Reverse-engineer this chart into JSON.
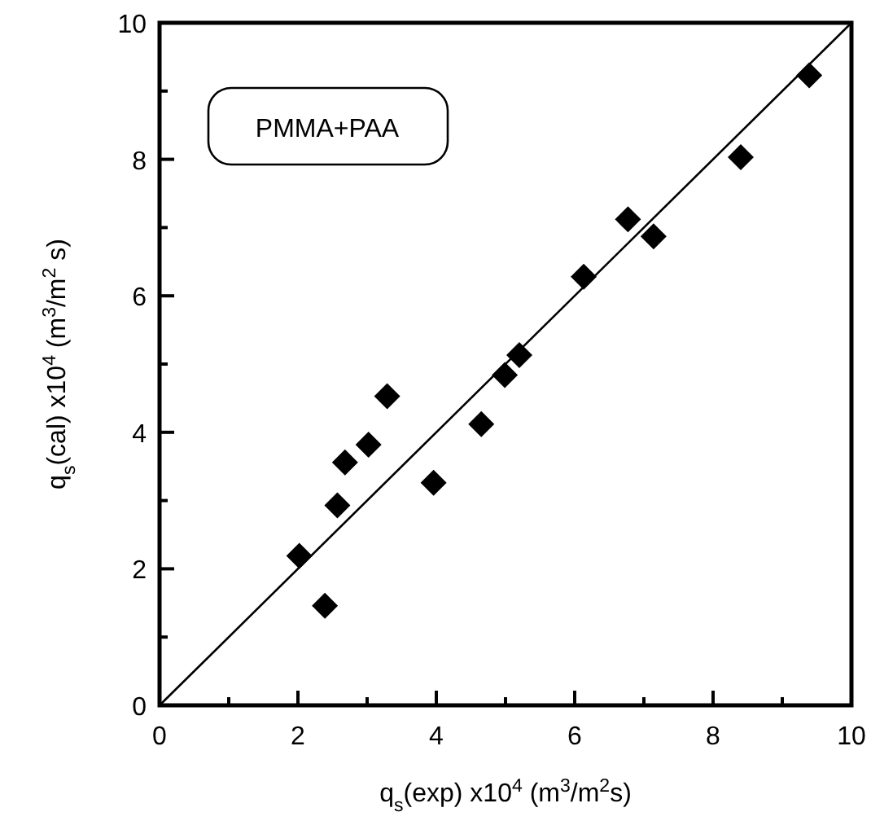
{
  "chart_data": {
    "type": "scatter",
    "xlabel": "q$_{s}$(exp) x10$^{4}$  (m$^{3}$/m$^{2}$s)",
    "ylabel": "q$_{s}$(cal)  x10$^{4}$  (m$^{3}$/m$^{2}$ s)",
    "annotations": [
      "PMMA+PAA"
    ],
    "xlim": [
      0,
      10
    ],
    "ylim": [
      0,
      10
    ],
    "xticks": [
      0,
      {
        "value": 1,
        "label": null
      },
      2,
      {
        "value": 3,
        "label": null
      },
      4,
      {
        "value": 5,
        "label": null
      },
      6,
      {
        "value": 7,
        "label": null
      },
      8,
      {
        "value": 9,
        "label": null
      },
      10
    ],
    "yticks": [
      0,
      {
        "value": 1,
        "label": null
      },
      2,
      {
        "value": 3,
        "label": null
      },
      4,
      {
        "value": 5,
        "label": null
      },
      6,
      {
        "value": 7,
        "label": null
      },
      8,
      {
        "value": 9,
        "label": null
      },
      10
    ],
    "grid": false,
    "series": [
      {
        "color": "#000000",
        "marker": "diamond",
        "x": [
          2.02,
          2.39,
          2.57,
          2.68,
          3.02,
          3.29,
          3.96,
          4.65,
          4.99,
          5.2,
          6.13,
          6.77,
          7.14,
          8.4,
          9.39
        ],
        "values": [
          2.19,
          1.46,
          2.93,
          3.56,
          3.82,
          4.53,
          3.26,
          4.12,
          4.84,
          5.13,
          6.28,
          7.12,
          6.87,
          8.03,
          9.23
        ]
      },
      {
        "type": "line",
        "color": "#000000",
        "line_style": "solid",
        "marker": "none",
        "x": [
          0,
          10
        ],
        "values": [
          0,
          10
        ]
      }
    ]
  }
}
